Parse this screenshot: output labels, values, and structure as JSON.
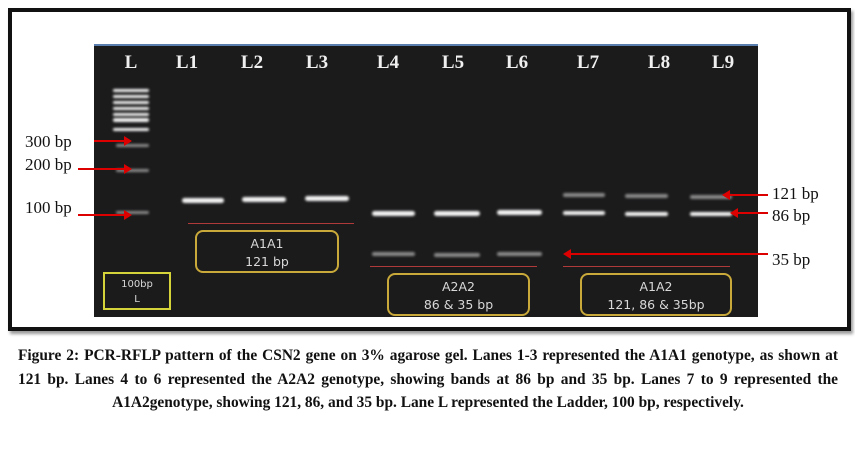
{
  "figure": {
    "lane_labels": [
      "L",
      "L1",
      "L2",
      "L3",
      "L4",
      "L5",
      "L6",
      "L7",
      "L8",
      "L9"
    ],
    "left_markers": [
      "300 bp",
      "200 bp",
      "100 bp"
    ],
    "right_markers": [
      "121 bp",
      "86 bp",
      "35 bp"
    ],
    "boxes": {
      "ladder": {
        "line1": "100bp",
        "line2": "L"
      },
      "a1a1": {
        "line1": "A1A1",
        "line2": "121 bp"
      },
      "a2a2": {
        "line1": "A2A2",
        "line2": "86 & 35 bp"
      },
      "a1a2": {
        "line1": "A1A2",
        "line2": "121, 86 & 35bp"
      }
    },
    "colors": {
      "arrow": "#dd0000",
      "box": "#c9a93a",
      "gel": "#1b1b1c"
    }
  },
  "caption": "Figure 2: PCR-RFLP pattern of the CSN2 gene on 3% agarose gel. Lanes 1-3 represented the A1A1 genotype, as shown at 121 bp. Lanes 4 to 6 represented the A2A2 genotype, showing bands at 86 bp and 35 bp. Lanes 7 to 9 represented the A1A2genotype, showing 121, 86, and 35 bp. Lane L represented the Ladder, 100 bp, respectively."
}
